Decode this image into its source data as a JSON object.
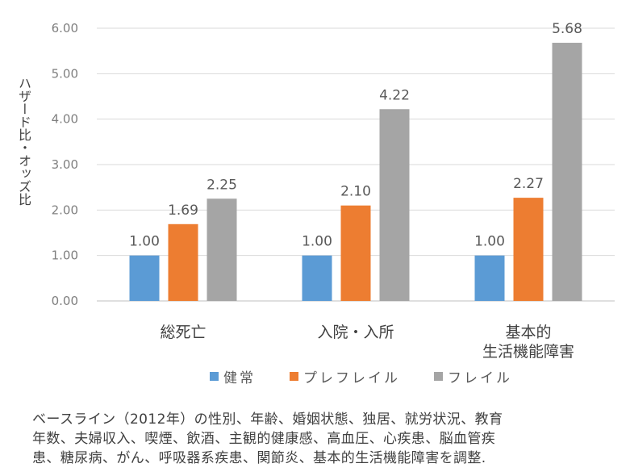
{
  "chart_data": {
    "type": "bar",
    "title": "",
    "xlabel": "",
    "ylabel": "ハザード比・オッズ比",
    "ylim": [
      0,
      6
    ],
    "yticks": [
      "0.00",
      "1.00",
      "2.00",
      "3.00",
      "4.00",
      "5.00",
      "6.00"
    ],
    "grid": true,
    "categories": [
      [
        "総死亡"
      ],
      [
        "入院・入所"
      ],
      [
        "基本的",
        "生活機能障害"
      ]
    ],
    "series": [
      {
        "name": "健常",
        "color": "#5b9bd5",
        "values": [
          1.0,
          1.0,
          1.0
        ],
        "labels": [
          "1.00",
          "1.00",
          "1.00"
        ]
      },
      {
        "name": "プレフレイル",
        "color": "#ed7d31",
        "values": [
          1.69,
          2.1,
          2.27
        ],
        "labels": [
          "1.69",
          "2.10",
          "2.27"
        ]
      },
      {
        "name": "フレイル",
        "color": "#a5a5a5",
        "values": [
          2.25,
          4.22,
          5.68
        ],
        "labels": [
          "2.25",
          "4.22",
          "5.68"
        ]
      }
    ],
    "legend": "bottom"
  },
  "footnote": {
    "lines": [
      "ベースライン（2012年）の性別、年齢、婚姻状態、独居、就労状況、教育",
      "年数、夫婦収入、喫煙、飲酒、主観的健康感、高血圧、心疾患、脳血管疾",
      "患、糖尿病、がん、呼吸器系疾患、関節炎、基本的生活機能障害を調整."
    ]
  }
}
